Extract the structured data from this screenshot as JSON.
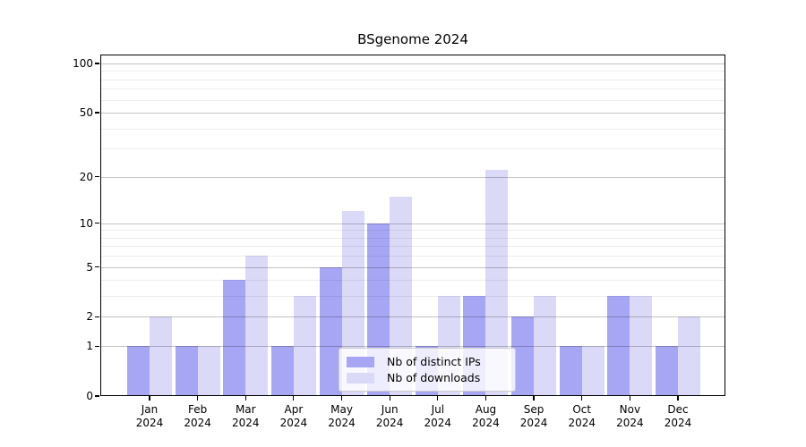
{
  "chart_data": {
    "type": "bar",
    "title": "BSgenome 2024",
    "categories": [
      "Jan",
      "Feb",
      "Mar",
      "Apr",
      "May",
      "Jun",
      "Jul",
      "Aug",
      "Sep",
      "Oct",
      "Nov",
      "Dec"
    ],
    "category_year": "2024",
    "series": [
      {
        "name": "Nb of distinct IPs",
        "color": "#a6a6f4",
        "values": [
          1,
          1,
          4,
          1,
          5,
          10,
          1,
          3,
          2,
          1,
          3,
          1
        ]
      },
      {
        "name": "Nb of downloads",
        "color": "#dadaf8",
        "values": [
          2,
          1,
          6,
          3,
          12,
          15,
          3,
          22,
          3,
          1,
          3,
          2
        ]
      }
    ],
    "yscale": "log1p",
    "ylim": [
      0,
      113
    ],
    "yticks": [
      0,
      1,
      2,
      5,
      10,
      20,
      50,
      100
    ],
    "minor_yticks": [
      3,
      4,
      6,
      7,
      8,
      9,
      30,
      40,
      60,
      70,
      80,
      90
    ],
    "grid": true,
    "gridlines_above_bars": true,
    "legend_position": "lower center",
    "background_color": "#ffffff",
    "axis_color": "#000000"
  }
}
